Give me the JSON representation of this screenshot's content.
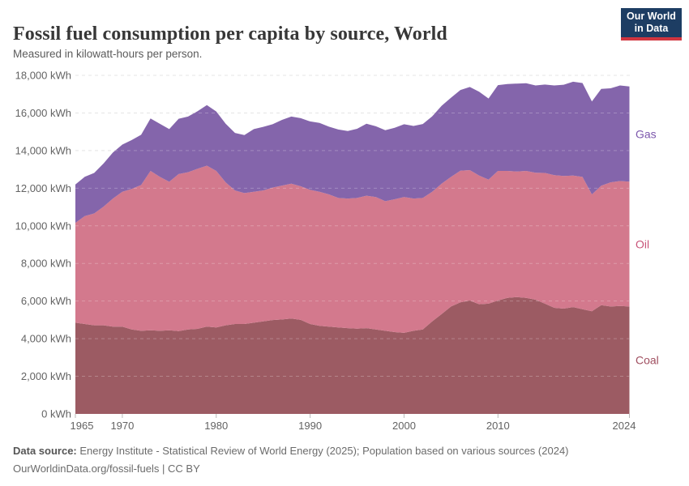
{
  "header": {
    "logo": {
      "line1": "Our World",
      "line2": "in Data",
      "bg_color": "#1d3d63",
      "stripe_color": "#d1353f"
    }
  },
  "chart_data": {
    "type": "area",
    "stacked": true,
    "title": "Fossil fuel consumption per capita by source, World",
    "subtitle": "Measured in kilowatt-hours per person.",
    "xlabel": "",
    "ylabel": "kWh",
    "ylim": [
      0,
      18000
    ],
    "grid": "dashed",
    "legend_position": "right",
    "x": [
      1965,
      1966,
      1967,
      1968,
      1969,
      1970,
      1971,
      1972,
      1973,
      1974,
      1975,
      1976,
      1977,
      1978,
      1979,
      1980,
      1981,
      1982,
      1983,
      1984,
      1985,
      1986,
      1987,
      1988,
      1989,
      1990,
      1991,
      1992,
      1993,
      1994,
      1995,
      1996,
      1997,
      1998,
      1999,
      2000,
      2001,
      2002,
      2003,
      2004,
      2005,
      2006,
      2007,
      2008,
      2009,
      2010,
      2011,
      2012,
      2013,
      2014,
      2015,
      2016,
      2017,
      2018,
      2019,
      2020,
      2021,
      2022,
      2023,
      2024
    ],
    "xticks": [
      1965,
      1970,
      1980,
      1990,
      2000,
      2010,
      2024
    ],
    "ytick_labels": [
      "0 kWh",
      "2,000 kWh",
      "4,000 kWh",
      "6,000 kWh",
      "8,000 kWh",
      "10,000 kWh",
      "12,000 kWh",
      "14,000 kWh",
      "16,000 kWh",
      "18,000 kWh"
    ],
    "series": [
      {
        "name": "Coal",
        "color": "#9C5B63",
        "label_color": "#A04F60",
        "values": [
          4850,
          4780,
          4710,
          4710,
          4640,
          4640,
          4490,
          4420,
          4450,
          4420,
          4450,
          4400,
          4490,
          4520,
          4640,
          4600,
          4710,
          4780,
          4780,
          4850,
          4920,
          4990,
          5020,
          5070,
          5000,
          4780,
          4680,
          4640,
          4600,
          4560,
          4530,
          4560,
          4490,
          4420,
          4350,
          4310,
          4420,
          4490,
          4920,
          5310,
          5710,
          5930,
          6030,
          5830,
          5860,
          6030,
          6170,
          6210,
          6170,
          6070,
          5860,
          5640,
          5600,
          5680,
          5570,
          5460,
          5780,
          5710,
          5740,
          5710
        ]
      },
      {
        "name": "Oil",
        "color": "#D3798D",
        "label_color": "#C85479",
        "values": [
          5310,
          5740,
          5950,
          6310,
          6810,
          7170,
          7470,
          7750,
          8470,
          8180,
          7890,
          8350,
          8360,
          8510,
          8560,
          8320,
          7600,
          7100,
          6960,
          6960,
          6960,
          7040,
          7120,
          7170,
          7100,
          7130,
          7130,
          7030,
          6880,
          6890,
          6950,
          7040,
          7040,
          6890,
          7060,
          7220,
          7030,
          6990,
          6890,
          6930,
          6890,
          7000,
          6930,
          6840,
          6600,
          6890,
          6750,
          6680,
          6750,
          6750,
          6950,
          7050,
          7050,
          6990,
          7030,
          6210,
          6350,
          6600,
          6640,
          6640
        ]
      },
      {
        "name": "Gas",
        "color": "#8465AB",
        "label_color": "#7C57AC",
        "values": [
          2040,
          2090,
          2150,
          2300,
          2450,
          2510,
          2600,
          2670,
          2790,
          2820,
          2800,
          2940,
          2960,
          3060,
          3220,
          3160,
          3120,
          3060,
          3080,
          3330,
          3380,
          3370,
          3490,
          3570,
          3620,
          3640,
          3660,
          3600,
          3640,
          3590,
          3680,
          3830,
          3760,
          3770,
          3800,
          3870,
          3860,
          3930,
          4010,
          4140,
          4210,
          4290,
          4420,
          4460,
          4310,
          4560,
          4620,
          4670,
          4660,
          4640,
          4700,
          4770,
          4850,
          4990,
          4990,
          4940,
          5150,
          5000,
          5080,
          5060
        ]
      }
    ],
    "gridline_color": "#dcdcdc",
    "gridline_overlay_color": "rgba(255,255,255,0.25)",
    "tick_color": "#b9b9b9"
  },
  "footer": {
    "data_source_label": "Data source:",
    "data_source_text": "Energy Institute - Statistical Review of World Energy (2025); Population based on various sources (2024)",
    "url": "OurWorldinData.org/fossil-fuels",
    "divider": "|",
    "license": "CC BY"
  }
}
